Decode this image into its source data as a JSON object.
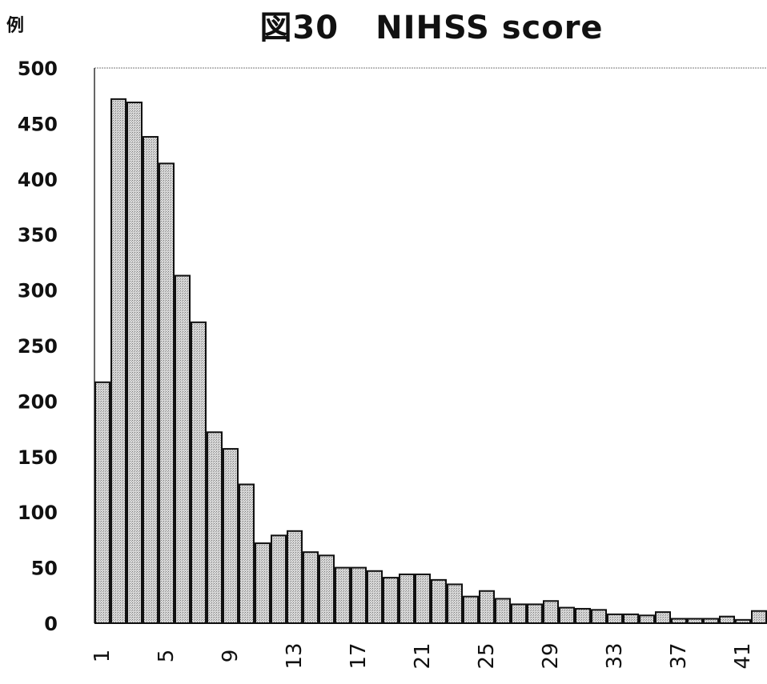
{
  "chart_data": {
    "type": "bar",
    "title_prefix": "図30",
    "title_text": "NIHSS score",
    "ylabel": "例",
    "xlabel": "",
    "ylim": [
      0,
      500
    ],
    "yticks": [
      0,
      50,
      100,
      150,
      200,
      250,
      300,
      350,
      400,
      450,
      500
    ],
    "categories": [
      1,
      2,
      3,
      4,
      5,
      6,
      7,
      8,
      9,
      10,
      11,
      12,
      13,
      14,
      15,
      16,
      17,
      18,
      19,
      20,
      21,
      22,
      23,
      24,
      25,
      26,
      27,
      28,
      29,
      30,
      31,
      32,
      33,
      34,
      35,
      36,
      37,
      38,
      39,
      40,
      41,
      42
    ],
    "x_tick_labels": [
      1,
      5,
      9,
      13,
      17,
      21,
      25,
      29,
      33,
      37,
      41
    ],
    "values": [
      217,
      472,
      469,
      438,
      414,
      313,
      271,
      172,
      157,
      125,
      72,
      79,
      83,
      64,
      61,
      50,
      50,
      47,
      41,
      44,
      44,
      39,
      35,
      24,
      29,
      22,
      17,
      17,
      20,
      14,
      13,
      12,
      8,
      8,
      7,
      10,
      4,
      4,
      4,
      6,
      3,
      11
    ],
    "bar_color": "#c9c9c9",
    "bar_edge": "#111111"
  }
}
